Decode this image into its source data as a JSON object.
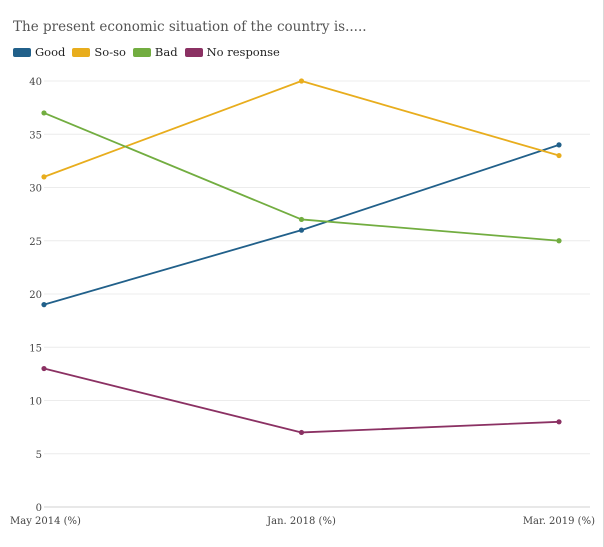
{
  "chart_title": "The present economic situation of the country is.....",
  "chart_data": {
    "type": "line",
    "title": "The present economic situation of the country is.....",
    "xlabel": "",
    "ylabel": "",
    "categories": [
      "May 2014 (%)",
      "Jan. 2018 (%)",
      "Mar. 2019 (%)"
    ],
    "ylim": [
      0,
      40
    ],
    "yticks": [
      0,
      5,
      10,
      15,
      20,
      25,
      30,
      35,
      40
    ],
    "grid": true,
    "legend_position": "top-left",
    "series": [
      {
        "name": "Good",
        "color": "#21608a",
        "values": [
          19,
          26,
          34
        ]
      },
      {
        "name": "So-so",
        "color": "#e8ad1d",
        "values": [
          31,
          40,
          33
        ]
      },
      {
        "name": "Bad",
        "color": "#72ad40",
        "values": [
          37,
          27,
          25
        ]
      },
      {
        "name": "No response",
        "color": "#8b3163",
        "values": [
          13,
          7,
          8
        ]
      }
    ]
  }
}
